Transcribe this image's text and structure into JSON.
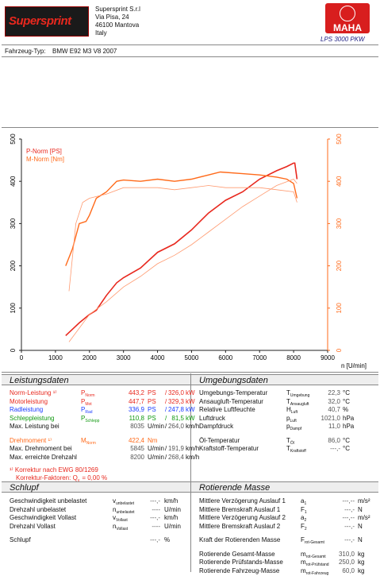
{
  "header": {
    "brand": "Supersprint",
    "address": [
      "Supersprint S.r.l",
      "Via Pisa, 24",
      "46100 Mantova",
      "Italy"
    ],
    "maha_logo": "MAHA",
    "model": "LPS 3000 PKW"
  },
  "vehicle": {
    "label": "Fahrzeug-Typ:",
    "value": "BMW E92 M3 V8 2007"
  },
  "chart_data": {
    "type": "line",
    "x_label": "n [U/min]",
    "xlim": [
      0,
      9000
    ],
    "xticks": [
      0,
      1000,
      2000,
      3000,
      4000,
      5000,
      6000,
      7000,
      8000,
      9000
    ],
    "ylim": [
      0,
      500
    ],
    "yticks": [
      0,
      100,
      200,
      300,
      400,
      500
    ],
    "y2lim": [
      0,
      500
    ],
    "y2ticks": [
      0,
      100,
      200,
      300,
      400,
      500
    ],
    "y_color": "#222222",
    "y2_color": "#ff6a1a",
    "legend": "top-left",
    "series": [
      {
        "name": "P-Norm [PS]",
        "color": "#e8281e",
        "width": 1.6,
        "x": [
          1300,
          1500,
          1700,
          2000,
          2200,
          2500,
          2800,
          3000,
          3500,
          4000,
          4500,
          5000,
          5500,
          6000,
          6500,
          7000,
          7500,
          7800,
          8000,
          8035,
          8100
        ],
        "values": [
          35,
          50,
          65,
          85,
          95,
          130,
          160,
          172,
          195,
          232,
          252,
          285,
          325,
          355,
          375,
          405,
          425,
          435,
          443,
          443,
          405
        ]
      },
      {
        "name": "M-Norm [Nm]",
        "color": "#ff6a1a",
        "width": 1.4,
        "axis": "y2",
        "x": [
          1300,
          1500,
          1700,
          1900,
          2000,
          2200,
          2500,
          2800,
          3000,
          3500,
          4000,
          4500,
          5000,
          5500,
          5845,
          6500,
          7000,
          7500,
          7800,
          8000,
          8100
        ],
        "values": [
          200,
          240,
          300,
          305,
          320,
          360,
          375,
          400,
          403,
          400,
          405,
          400,
          405,
          415,
          422,
          418,
          415,
          410,
          405,
          395,
          360
        ]
      },
      {
        "color": "#ff9a70",
        "width": 0.8,
        "axis": "y2",
        "x": [
          1400,
          1600,
          1800,
          2000,
          2500,
          3000,
          3500,
          4000,
          4500,
          5000,
          5500,
          6000,
          6500,
          7000,
          7500,
          8000,
          8100
        ],
        "values": [
          140,
          300,
          350,
          360,
          370,
          385,
          385,
          385,
          380,
          385,
          390,
          385,
          385,
          385,
          380,
          375,
          350
        ]
      },
      {
        "color": "#ff9a70",
        "width": 0.8,
        "x": [
          1400,
          2000,
          2500,
          3000,
          3500,
          4000,
          4500,
          5000,
          5500,
          6000,
          6500,
          7000,
          7500,
          8000,
          8100
        ],
        "values": [
          20,
          85,
          115,
          150,
          175,
          205,
          225,
          250,
          280,
          310,
          340,
          365,
          390,
          405,
          395
        ]
      }
    ]
  },
  "leistungsdaten": {
    "title": "Leistungsdaten",
    "separator": "/",
    "rows": [
      {
        "label": "Norm-Leistung ¹⁾",
        "color": "#e8281e",
        "sym": "P",
        "sub": "Norm",
        "v1": "443,2",
        "u1": "PS",
        "v2": "326,0",
        "u2": "kW"
      },
      {
        "label": "Motorleistung",
        "color": "#e8281e",
        "sym": "P",
        "sub": "Mot",
        "v1": "447,7",
        "u1": "PS",
        "v2": "329,3",
        "u2": "kW"
      },
      {
        "label": "Radleistung",
        "color": "#1a3cff",
        "sym": "P",
        "sub": "Rad",
        "v1": "336,9",
        "u1": "PS",
        "v2": "247,8",
        "u2": "kW"
      },
      {
        "label": "Schleppleistung",
        "color": "#119911",
        "sym": "P",
        "sub": "Schlepp",
        "v1": "110,8",
        "u1": "PS",
        "v2": "81,5",
        "u2": "kW"
      },
      {
        "label": "Max. Leistung bei",
        "v1": "8035",
        "u1": "U/min",
        "v2": "264,0",
        "u2": "km/h"
      },
      {
        "label": "Drehmoment ¹⁾",
        "color": "#ff6a1a",
        "sym": "M",
        "sub": "Norm",
        "v1": "422,4",
        "u1": "Nm",
        "gap": true
      },
      {
        "label": "Max. Drehmoment bei",
        "v1": "5845",
        "u1": "U/min",
        "v2": "191,9",
        "u2": "km/h"
      },
      {
        "label": "Max. erreichte Drehzahl",
        "v1": "8200",
        "u1": "U/min",
        "v2": "268,4",
        "u2": "km/h"
      }
    ],
    "note1": "¹⁾ Korrektur nach EWG 80/1269",
    "note2": "Korrektur-Faktoren: Q",
    "note2_sub": "v",
    "note2_value": "= 0,00 %"
  },
  "umgebungsdaten": {
    "title": "Umgebungsdaten",
    "rows": [
      {
        "label": "Umgebungs-Temperatur",
        "sym": "T",
        "sub": "Umgebung",
        "v1": "22,3",
        "u1": "°C"
      },
      {
        "label": "Ansaugluft-Temperatur",
        "sym": "T",
        "sub": "Ansaugluft",
        "v1": "32,0",
        "u1": "°C"
      },
      {
        "label": "Relative Luftfeuchte",
        "sym": "H",
        "sub": "Luft",
        "v1": "40,7",
        "u1": "%"
      },
      {
        "label": "Luftdruck",
        "sym": "p",
        "sub": "Luft",
        "v1": "1021,0",
        "u1": "hPa"
      },
      {
        "label": "Dampfdruck",
        "sym": "p",
        "sub": "Dampf",
        "v1": "11,0",
        "u1": "hPa"
      },
      {
        "label": "Öl-Temperatur",
        "sym": "T",
        "sub": "Öl",
        "v1": "86,0",
        "u1": "°C",
        "gap": true
      },
      {
        "label": "Kraftstoff-Temperatur",
        "sym": "T",
        "sub": "Kraftstoff",
        "v1": "---,-",
        "u1": "°C"
      }
    ]
  },
  "schlupf": {
    "title": "Schlupf",
    "rows": [
      {
        "label": "Geschwindigkeit unbelastet",
        "sym": "v",
        "sub": "unbelastet",
        "v1": "---,-",
        "u1": "km/h"
      },
      {
        "label": "Drehzahl unbelastet",
        "sym": "n",
        "sub": "unbelastet",
        "v1": "----",
        "u1": "U/min"
      },
      {
        "label": "Geschwindigkeit Vollast",
        "sym": "v",
        "sub": "Vollast",
        "v1": "---,-",
        "u1": "km/h"
      },
      {
        "label": "Drehzahl Vollast",
        "sym": "n",
        "sub": "Vollast",
        "v1": "----",
        "u1": "U/min"
      },
      {
        "label": "Schlupf",
        "v1": "---,-",
        "u1": "%",
        "gap": true
      }
    ]
  },
  "rotierende_masse": {
    "title": "Rotierende Masse",
    "rows": [
      {
        "label": "Mittlere Verzögerung Auslauf 1",
        "sym": "a",
        "sub": "1",
        "v1": "---,--",
        "u1": "m/s²"
      },
      {
        "label": "Mittlere Bremskraft Auslauf 1",
        "sym": "F",
        "sub": "1",
        "v1": "---,-",
        "u1": "N"
      },
      {
        "label": "Mittlere Verzögerung Auslauf 2",
        "sym": "a",
        "sub": "2",
        "v1": "---,--",
        "u1": "m/s²"
      },
      {
        "label": "Mittlere Bremskraft Auslauf 2",
        "sym": "F",
        "sub": "2",
        "v1": "---,-",
        "u1": "N"
      },
      {
        "label": "Kraft der Rotierenden Masse",
        "sym": "F",
        "sub": "rot-Gesamt",
        "v1": "---,-",
        "u1": "N",
        "gap": true
      },
      {
        "label": "Rotierende Gesamt-Masse",
        "sym": "m",
        "sub": "rot-Gesamt",
        "v1": "310,0",
        "u1": "kg",
        "gap": true
      },
      {
        "label": "Rotierende Prüfstands-Masse",
        "sym": "m",
        "sub": "rot-Prüfstand",
        "v1": "250,0",
        "u1": "kg"
      },
      {
        "label": "Rotierende Fahrzeug-Masse",
        "sym": "m",
        "sub": "rot-Fahrzeug",
        "v1": "60,0",
        "u1": "kg"
      }
    ]
  }
}
